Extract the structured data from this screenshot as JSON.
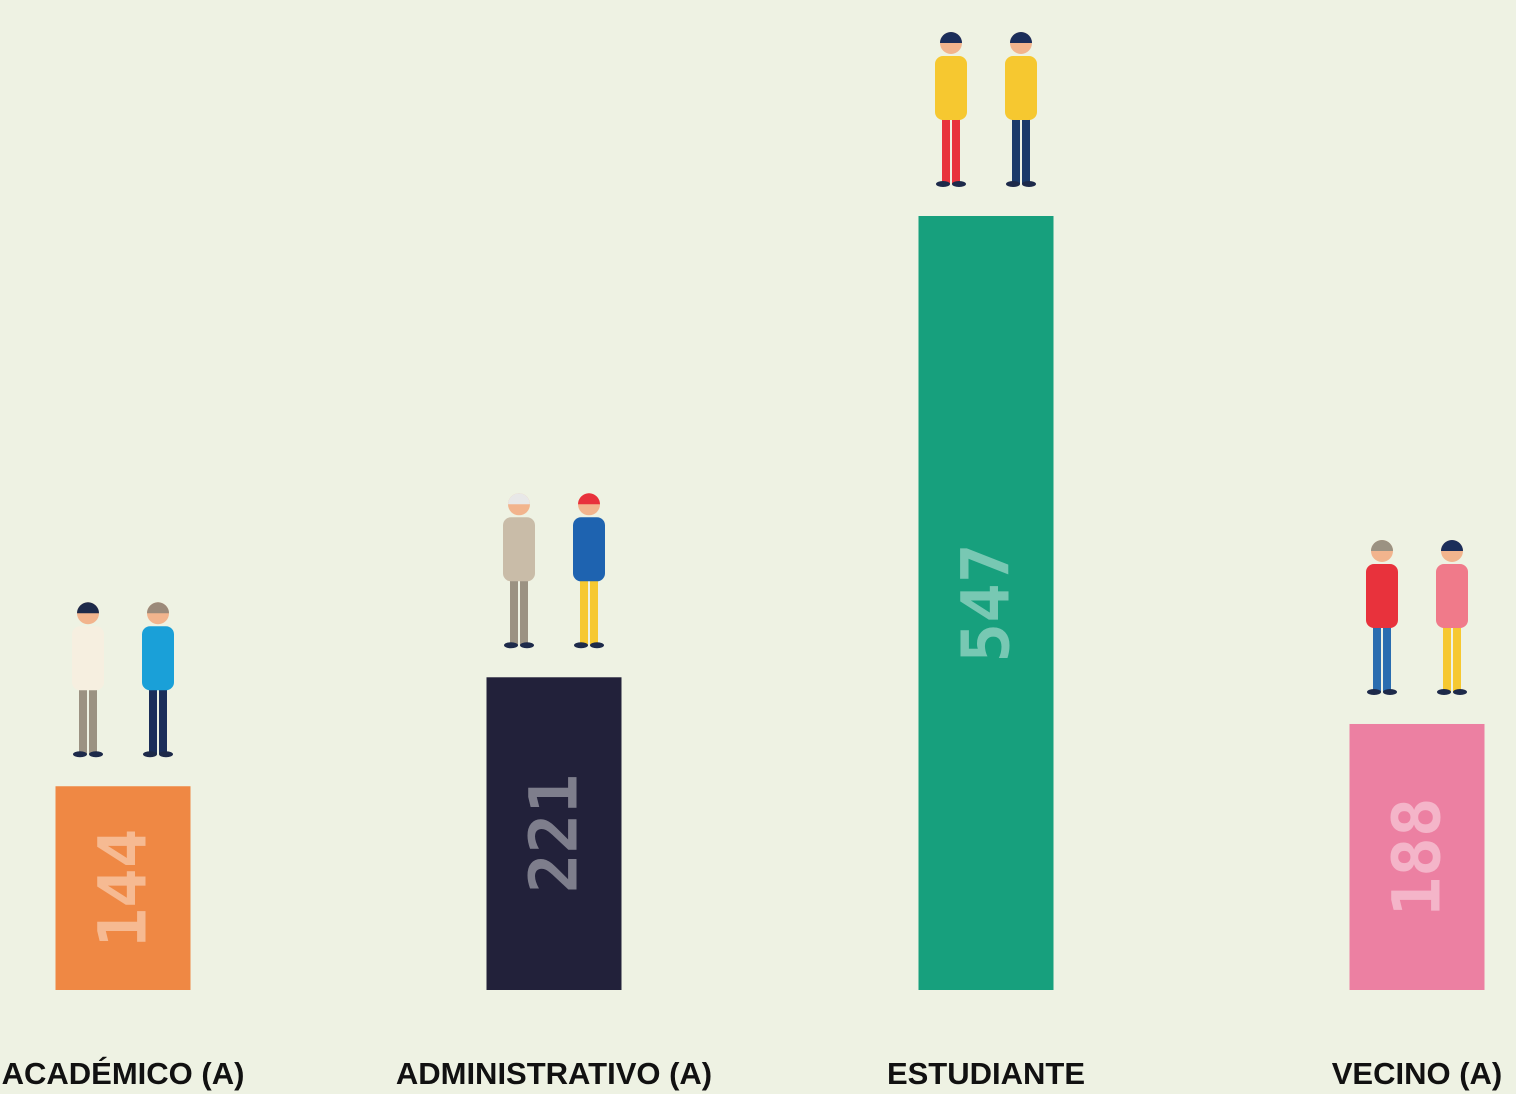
{
  "chart_data": {
    "type": "bar",
    "categories": [
      "ACADÉMICO (A)",
      "ADMINISTRATIVO (A)",
      "ESTUDIANTE",
      "VECINO (A)"
    ],
    "values": [
      144,
      221,
      547,
      188
    ],
    "colors": [
      "#ef8844",
      "#22213a",
      "#17a07d",
      "#ec80a2"
    ]
  }
}
